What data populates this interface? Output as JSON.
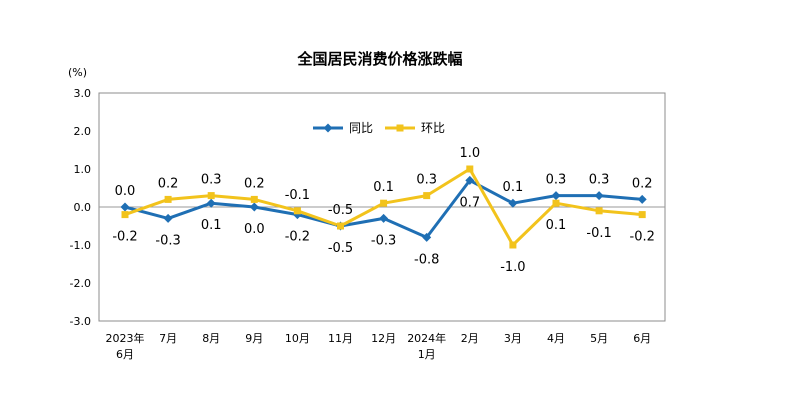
{
  "chart_data": {
    "type": "line",
    "title": "全国居民消费价格涨跌幅",
    "unit_label": "(%)",
    "xlabel": "",
    "ylabel": "",
    "ylim": [
      -3.0,
      3.0
    ],
    "yticks": [
      "3.0",
      "2.0",
      "1.0",
      "0.0",
      "-1.0",
      "-2.0",
      "-3.0"
    ],
    "categories": [
      [
        "2023年",
        "6月"
      ],
      [
        "7月"
      ],
      [
        "8月"
      ],
      [
        "9月"
      ],
      [
        "10月"
      ],
      [
        "11月"
      ],
      [
        "12月"
      ],
      [
        "2024年",
        "1月"
      ],
      [
        "2月"
      ],
      [
        "3月"
      ],
      [
        "4月"
      ],
      [
        "5月"
      ],
      [
        "6月"
      ]
    ],
    "legend_position": "top-center",
    "grid": false,
    "series": [
      {
        "name": "同比",
        "color": "#1f6fb4",
        "marker": "diamond",
        "values": [
          0.0,
          -0.3,
          0.1,
          0.0,
          -0.2,
          -0.5,
          -0.3,
          -0.8,
          0.7,
          0.1,
          0.3,
          0.3,
          0.2
        ],
        "labels": [
          "0.0",
          "-0.3",
          "0.1",
          "0.0",
          "-0.2",
          "-0.5",
          "-0.3",
          "-0.8",
          "0.7",
          "0.1",
          "0.3",
          "0.3",
          "0.2"
        ]
      },
      {
        "name": "环比",
        "color": "#f2c31c",
        "marker": "square",
        "values": [
          -0.2,
          0.2,
          0.3,
          0.2,
          -0.1,
          -0.5,
          0.1,
          0.3,
          1.0,
          -1.0,
          0.1,
          -0.1,
          -0.2
        ],
        "labels": [
          "-0.2",
          "0.2",
          "0.3",
          "0.2",
          "-0.1",
          "-0.5",
          "0.1",
          "0.3",
          "1.0",
          "-1.0",
          "0.1",
          "-0.1",
          "-0.2"
        ]
      }
    ]
  }
}
